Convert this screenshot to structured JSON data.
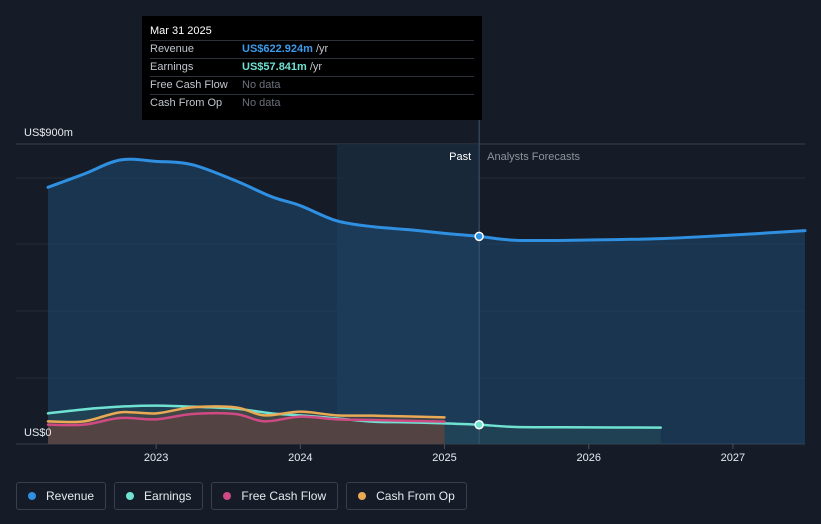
{
  "chart_data": {
    "type": "area",
    "y_axis": {
      "top_label": "US$900m",
      "bottom_label": "US$0",
      "ylim": [
        0,
        900
      ]
    },
    "x_ticks": [
      "2023",
      "2024",
      "2025",
      "2026",
      "2027"
    ],
    "xlim": [
      2022.25,
      2027.5
    ],
    "divider_x": 2025.24,
    "past_label": "Past",
    "forecast_label": "Analysts Forecasts",
    "series": [
      {
        "name": "Revenue",
        "color": "#2f8fe0",
        "points": [
          [
            2022.25,
            770
          ],
          [
            2022.5,
            810
          ],
          [
            2022.75,
            852
          ],
          [
            2023.0,
            848
          ],
          [
            2023.25,
            838
          ],
          [
            2023.55,
            790
          ],
          [
            2023.8,
            742
          ],
          [
            2024.0,
            715
          ],
          [
            2024.25,
            670
          ],
          [
            2024.5,
            652
          ],
          [
            2024.75,
            643
          ],
          [
            2025.0,
            632
          ],
          [
            2025.24,
            623
          ],
          [
            2025.5,
            611
          ],
          [
            2026.0,
            612
          ],
          [
            2026.5,
            616
          ],
          [
            2027.0,
            627
          ],
          [
            2027.5,
            640
          ]
        ]
      },
      {
        "name": "Earnings",
        "color": "#6fe2d2",
        "points": [
          [
            2022.25,
            92
          ],
          [
            2022.5,
            104
          ],
          [
            2022.75,
            112
          ],
          [
            2023.0,
            115
          ],
          [
            2023.25,
            112
          ],
          [
            2023.55,
            106
          ],
          [
            2023.8,
            92
          ],
          [
            2024.0,
            86
          ],
          [
            2024.25,
            77
          ],
          [
            2024.5,
            67
          ],
          [
            2024.75,
            65
          ],
          [
            2025.0,
            62
          ],
          [
            2025.24,
            58
          ],
          [
            2025.5,
            51
          ],
          [
            2026.0,
            50
          ],
          [
            2026.5,
            49
          ]
        ]
      },
      {
        "name": "Free Cash Flow",
        "color": "#cf4a83",
        "points": [
          [
            2022.25,
            58
          ],
          [
            2022.5,
            58
          ],
          [
            2022.75,
            78
          ],
          [
            2023.0,
            74
          ],
          [
            2023.25,
            90
          ],
          [
            2023.55,
            90
          ],
          [
            2023.75,
            68
          ],
          [
            2024.0,
            82
          ],
          [
            2024.25,
            74
          ],
          [
            2024.5,
            72
          ],
          [
            2025.0,
            67
          ]
        ]
      },
      {
        "name": "Cash From Op",
        "color": "#e9a955",
        "points": [
          [
            2022.25,
            68
          ],
          [
            2022.5,
            68
          ],
          [
            2022.75,
            95
          ],
          [
            2023.0,
            92
          ],
          [
            2023.25,
            110
          ],
          [
            2023.55,
            110
          ],
          [
            2023.75,
            86
          ],
          [
            2024.0,
            97
          ],
          [
            2024.25,
            86
          ],
          [
            2024.5,
            85
          ],
          [
            2025.0,
            80
          ]
        ]
      }
    ],
    "highlight_points": [
      {
        "series": "Revenue",
        "x": 2025.24,
        "y": 622.924
      },
      {
        "series": "Earnings",
        "x": 2025.24,
        "y": 57.841
      }
    ]
  },
  "tooltip": {
    "date": "Mar 31 2025",
    "rows": [
      {
        "label": "Revenue",
        "value": "US$622.924m",
        "unit": "/yr",
        "color": "#3a9bec"
      },
      {
        "label": "Earnings",
        "value": "US$57.841m",
        "unit": "/yr",
        "color": "#6fe2d2"
      },
      {
        "label": "Free Cash Flow",
        "value": "No data",
        "unit": ""
      },
      {
        "label": "Cash From Op",
        "value": "No data",
        "unit": ""
      }
    ]
  },
  "legend": [
    {
      "label": "Revenue",
      "color": "#2f8fe0"
    },
    {
      "label": "Earnings",
      "color": "#6fe2d2"
    },
    {
      "label": "Free Cash Flow",
      "color": "#cf4a83"
    },
    {
      "label": "Cash From Op",
      "color": "#e9a955"
    }
  ]
}
